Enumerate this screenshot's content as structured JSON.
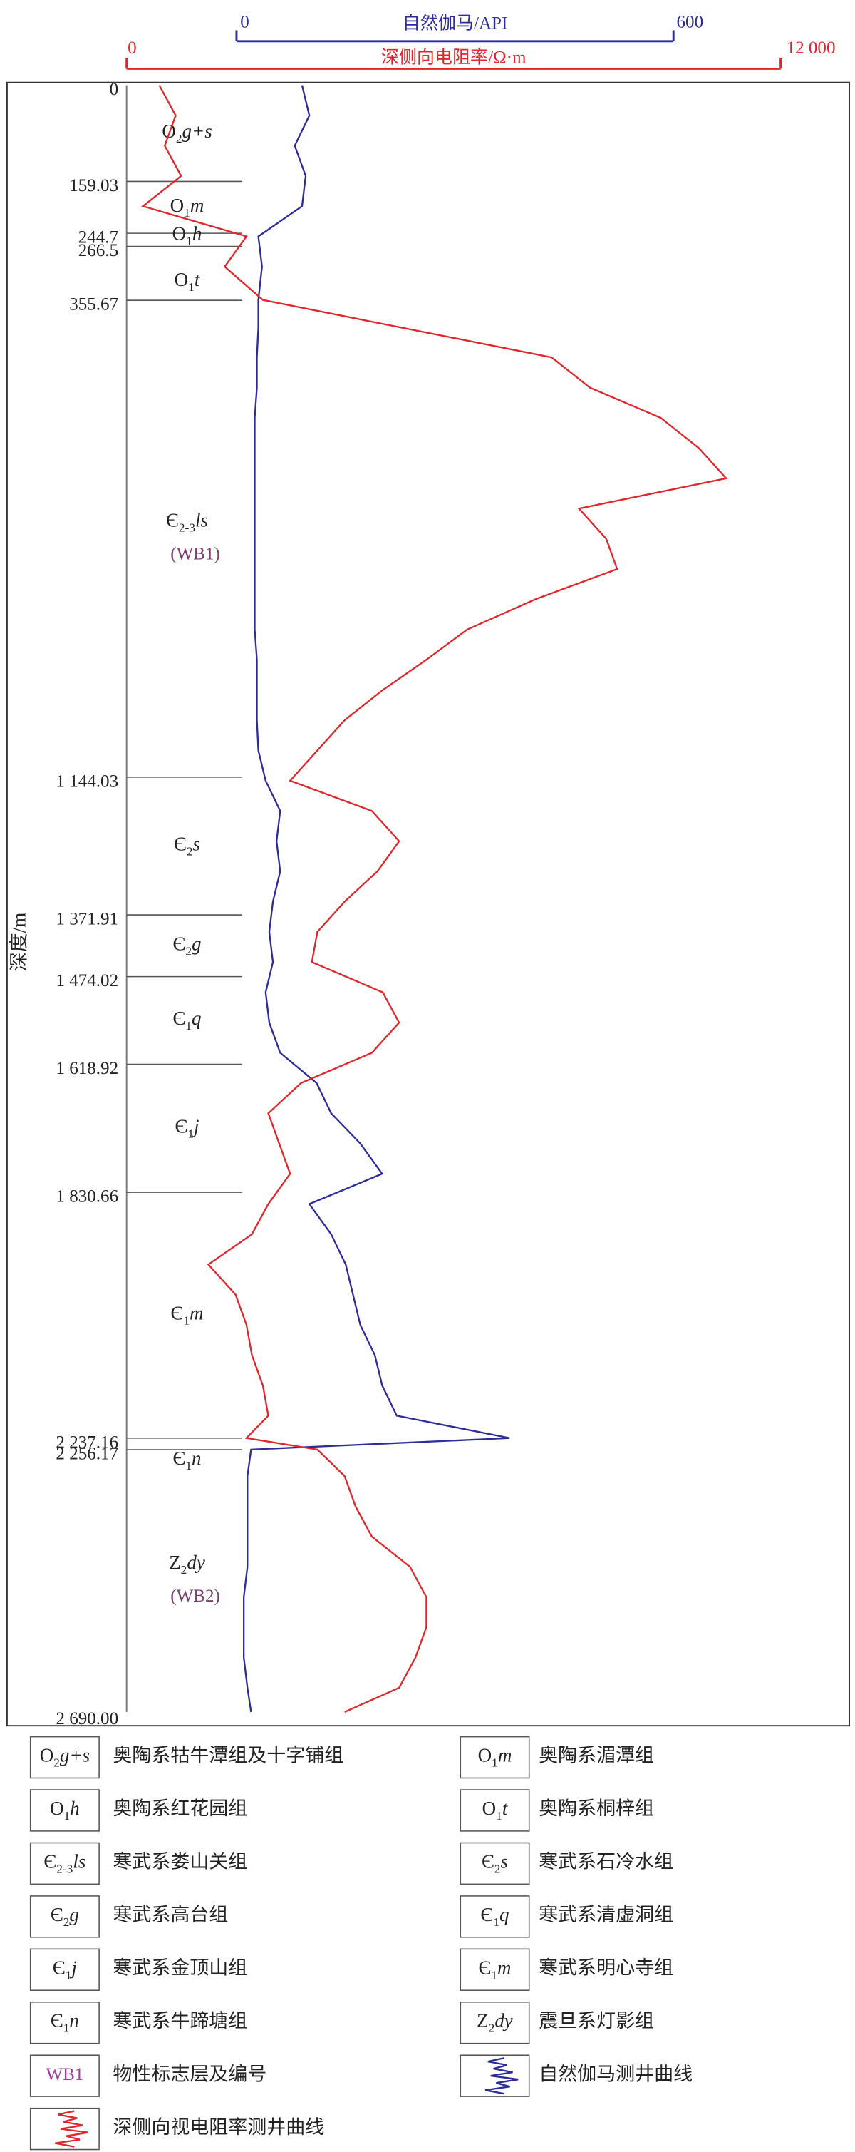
{
  "chart_data": {
    "type": "well-log",
    "y_label": "深度/m",
    "gamma_label": "自然伽马/API",
    "gamma_lim": [
      0,
      600
    ],
    "gamma_ticks": [
      0,
      600
    ],
    "resistivity_label": "深侧向电阻率/Ω·m",
    "resistivity_lim": [
      0,
      12000
    ],
    "resistivity_ticks": [
      0,
      {
        "value": 12000,
        "label": "12 000"
      }
    ],
    "ylim": [
      0,
      2690
    ],
    "yticks": [
      0,
      159.03,
      244.7,
      266.5,
      355.67,
      {
        "value": 1144.03,
        "label": "1 144.03"
      },
      {
        "value": 1371.91,
        "label": "1 371.91"
      },
      {
        "value": 1474.02,
        "label": "1 474.02"
      },
      {
        "value": 1618.92,
        "label": "1 618.92"
      },
      {
        "value": 1830.66,
        "label": "1 830.66"
      },
      {
        "value": 2237.16,
        "label": "2 237.16"
      },
      {
        "value": 2256.17,
        "label": "2 256.17"
      },
      {
        "value": 2690.0,
        "label": "2 690.00"
      }
    ],
    "formations": [
      {
        "era": "O",
        "sub": "2",
        "name": "g+s",
        "legend": "奥陶系牯牛潭组及十字铺组"
      },
      {
        "era": "O",
        "sub": "1",
        "name": "m",
        "legend": "奥陶系湄潭组"
      },
      {
        "era": "O",
        "sub": "1",
        "name": "h",
        "legend": "奥陶系红花园组"
      },
      {
        "era": "O",
        "sub": "1",
        "name": "t",
        "legend": "奥陶系桐梓组"
      },
      {
        "era": "Є",
        "sub": "2-3",
        "name": "ls",
        "marker": "(WB1)",
        "legend": "寒武系娄山关组"
      },
      {
        "era": "Є",
        "sub": "2",
        "name": "s",
        "legend": "寒武系石冷水组"
      },
      {
        "era": "Є",
        "sub": "2",
        "name": "g",
        "legend": "寒武系高台组"
      },
      {
        "era": "Є",
        "sub": "1",
        "name": "q",
        "legend": "寒武系清虚洞组"
      },
      {
        "era": "Є",
        "sub": "1",
        "name": "j",
        "legend": "寒武系金顶山组"
      },
      {
        "era": "Є",
        "sub": "1",
        "name": "m",
        "legend": "寒武系明心寺组"
      },
      {
        "era": "Є",
        "sub": "1",
        "name": "n",
        "legend": "寒武系牛蹄塘组"
      },
      {
        "era": "Z",
        "sub": "2",
        "name": "dy",
        "marker": "(WB2)",
        "legend": "震旦系灯影组"
      }
    ],
    "marker_legend": {
      "symbol": "WB1",
      "text": "物性标志层及编号"
    },
    "depth": [
      0,
      50,
      100,
      150,
      200,
      250,
      300,
      355,
      400,
      450,
      500,
      550,
      600,
      650,
      700,
      750,
      800,
      850,
      900,
      950,
      1000,
      1050,
      1100,
      1150,
      1200,
      1250,
      1300,
      1350,
      1400,
      1450,
      1500,
      1550,
      1600,
      1650,
      1700,
      1750,
      1800,
      1850,
      1900,
      1950,
      2000,
      2050,
      2100,
      2150,
      2200,
      2237,
      2256,
      2300,
      2350,
      2400,
      2450,
      2500,
      2550,
      2600,
      2650,
      2690
    ],
    "series": [
      {
        "name": "自然伽马测井曲线",
        "color": "#2b2b9a",
        "values": [
          90,
          100,
          80,
          95,
          90,
          30,
          35,
          30,
          30,
          28,
          28,
          25,
          25,
          25,
          25,
          25,
          25,
          25,
          25,
          28,
          28,
          28,
          30,
          40,
          60,
          55,
          60,
          50,
          45,
          50,
          40,
          45,
          60,
          110,
          130,
          170,
          200,
          100,
          130,
          150,
          160,
          170,
          190,
          200,
          220,
          375,
          20,
          15,
          15,
          15,
          15,
          10,
          10,
          10,
          15,
          20
        ]
      },
      {
        "name": "深侧向视电阻率测井曲线",
        "color": "#e0262b",
        "axis": "resistivity",
        "values": [
          600,
          900,
          700,
          1000,
          300,
          2200,
          1800,
          2500,
          5000,
          7800,
          8500,
          9800,
          10500,
          11000,
          8300,
          8800,
          9000,
          7500,
          6250,
          5500,
          4700,
          4000,
          3500,
          3000,
          4500,
          5000,
          4600,
          4000,
          3500,
          3400,
          4700,
          5000,
          4500,
          3200,
          2600,
          2800,
          3000,
          2600,
          2300,
          1500,
          2000,
          2200,
          2300,
          2500,
          2600,
          2200,
          3500,
          4000,
          4200,
          4500,
          5200,
          5500,
          5500,
          5300,
          5000,
          4000
        ]
      }
    ]
  }
}
